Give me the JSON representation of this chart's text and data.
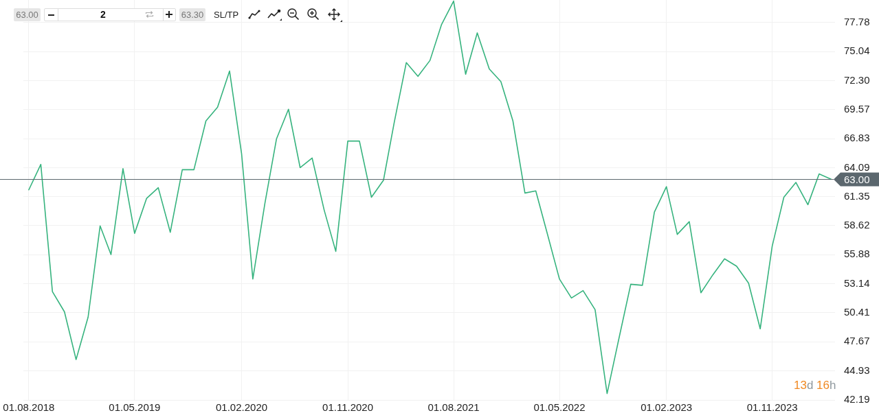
{
  "chart_data": {
    "type": "line",
    "color": "#36b37e",
    "line_style": "solid",
    "grid": true,
    "x": [
      "2018-08",
      "2018-09",
      "2018-10",
      "2018-11",
      "2018-12",
      "2019-01",
      "2019-02",
      "2019-03",
      "2019-04",
      "2019-05",
      "2019-06",
      "2019-07",
      "2019-08",
      "2019-09",
      "2019-10",
      "2019-11",
      "2019-12",
      "2020-01",
      "2020-02",
      "2020-03",
      "2020-04",
      "2020-05",
      "2020-06",
      "2020-07",
      "2020-08",
      "2020-09",
      "2020-10",
      "2020-11",
      "2020-12",
      "2021-01",
      "2021-02",
      "2021-03",
      "2021-04",
      "2021-05",
      "2021-06",
      "2021-07",
      "2021-08",
      "2021-09",
      "2021-10",
      "2021-11",
      "2021-12",
      "2022-01",
      "2022-02",
      "2022-03",
      "2022-04",
      "2022-05",
      "2022-06",
      "2022-07",
      "2022-08",
      "2022-09",
      "2022-10",
      "2022-11",
      "2022-12",
      "2023-01",
      "2023-02",
      "2023-03",
      "2023-04",
      "2023-05",
      "2023-06",
      "2023-07",
      "2023-08",
      "2023-09",
      "2023-10",
      "2023-11",
      "2023-12",
      "2024-01",
      "2024-02",
      "2024-03",
      "2024-04"
    ],
    "values": [
      62.0,
      64.4,
      52.4,
      50.5,
      46.0,
      50.0,
      58.6,
      55.9,
      64.0,
      57.9,
      61.2,
      62.2,
      58.0,
      63.9,
      63.9,
      68.5,
      69.8,
      73.2,
      65.4,
      53.6,
      60.7,
      66.8,
      69.6,
      64.1,
      65.0,
      60.1,
      56.2,
      66.6,
      66.6,
      61.3,
      62.9,
      68.4,
      74.0,
      72.7,
      74.2,
      77.6,
      79.8,
      72.9,
      76.8,
      73.4,
      72.2,
      68.5,
      61.7,
      61.9,
      57.7,
      53.6,
      51.8,
      52.5,
      50.7,
      42.8,
      47.9,
      53.1,
      53.0,
      59.9,
      62.3,
      57.8,
      59.0,
      52.3,
      54.0,
      55.5,
      54.8,
      53.2,
      48.9,
      56.7,
      61.3,
      62.7,
      60.6,
      63.5,
      63.0
    ],
    "xlim": [
      "2018-07-18",
      "2024-04-11"
    ],
    "xticks": [
      {
        "value": "2018-08-01",
        "label": "01.08.2018"
      },
      {
        "value": "2019-05-01",
        "label": "01.05.2019"
      },
      {
        "value": "2020-02-01",
        "label": "01.02.2020"
      },
      {
        "value": "2020-11-01",
        "label": "01.11.2020"
      },
      {
        "value": "2021-08-01",
        "label": "01.08.2021"
      },
      {
        "value": "2022-05-01",
        "label": "01.05.2022"
      },
      {
        "value": "2023-02-01",
        "label": "01.02.2023"
      },
      {
        "value": "2023-11-01",
        "label": "01.11.2023"
      }
    ],
    "ylim": [
      42.19,
      79.9
    ],
    "yticks": [
      77.78,
      75.04,
      {
        "value": 72.3,
        "label": "72.30"
      },
      69.57,
      66.83,
      64.09,
      61.35,
      58.62,
      55.88,
      53.14,
      50.41,
      47.67,
      44.93,
      42.19
    ],
    "ref_lines": [
      {
        "axis": "y",
        "value": 63.0,
        "label": "63.00",
        "color": "#5b676e"
      }
    ],
    "annotations": [
      "63.00",
      "2",
      "63.30",
      "SL/TP",
      "13d 16h"
    ]
  }
}
